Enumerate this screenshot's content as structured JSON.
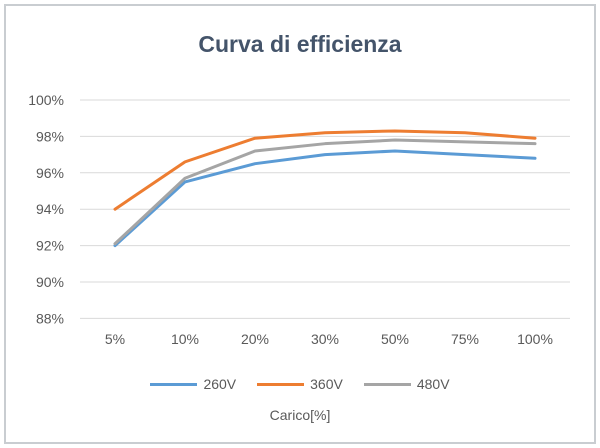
{
  "chart_data": {
    "type": "line",
    "title": "Curva di efficienza",
    "xlabel": "Carico[%]",
    "ylabel": "",
    "categories": [
      "5%",
      "10%",
      "20%",
      "30%",
      "50%",
      "75%",
      "100%"
    ],
    "series": [
      {
        "name": "260V",
        "color": "#5B9BD5",
        "values": [
          92.0,
          95.5,
          96.5,
          97.0,
          97.2,
          97.0,
          96.8
        ]
      },
      {
        "name": "360V",
        "color": "#ED7D31",
        "values": [
          94.0,
          96.6,
          97.9,
          98.2,
          98.3,
          98.2,
          97.9
        ]
      },
      {
        "name": "480V",
        "color": "#A5A5A5",
        "values": [
          92.1,
          95.7,
          97.2,
          97.6,
          97.8,
          97.7,
          97.6
        ]
      }
    ],
    "ylim": [
      88,
      100
    ],
    "ytick_step": 2,
    "ytick_suffix": "%",
    "grid": "horizontal",
    "legend_position": "bottom",
    "colors": {
      "gridline": "#D9D9D9",
      "axis_text": "#595959",
      "title_text": "#44546A",
      "frame_border": "#c9cdd1"
    }
  }
}
